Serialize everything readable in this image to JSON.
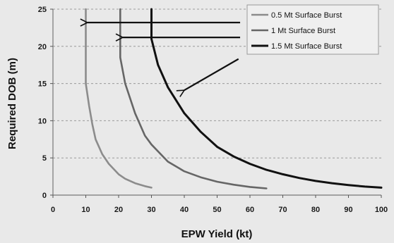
{
  "chart_data": {
    "type": "line",
    "xlabel": "EPW Yield (kt)",
    "ylabel": "Required DOB (m)",
    "xlim": [
      0,
      100
    ],
    "ylim": [
      0,
      25
    ],
    "xticks": [
      0,
      10,
      20,
      30,
      40,
      50,
      60,
      70,
      80,
      90,
      100
    ],
    "yticks": [
      0,
      5,
      10,
      15,
      20,
      25
    ],
    "grid": "horizontal dashed",
    "legend_position": "top-right",
    "series": [
      {
        "name": "0.5 Mt Surface Burst",
        "color": "#8c8c8c",
        "x": [
          10,
          10,
          11,
          12,
          13,
          15,
          17,
          20,
          22,
          25,
          28,
          30
        ],
        "y": [
          25,
          15,
          12,
          9.5,
          7.5,
          5.5,
          4.2,
          2.8,
          2.2,
          1.6,
          1.2,
          1.0
        ]
      },
      {
        "name": "1 Mt Surface Burst",
        "color": "#666666",
        "x": [
          20.5,
          20.5,
          22,
          25,
          28,
          30,
          35,
          40,
          45,
          50,
          55,
          60,
          65
        ],
        "y": [
          25,
          18.5,
          15,
          11,
          8,
          6.8,
          4.5,
          3.2,
          2.4,
          1.8,
          1.4,
          1.1,
          0.9
        ]
      },
      {
        "name": "1.5 Mt Surface Burst",
        "color": "#111111",
        "x": [
          30,
          30,
          32,
          35,
          40,
          45,
          50,
          55,
          60,
          65,
          70,
          75,
          80,
          85,
          90,
          95,
          100
        ],
        "y": [
          25,
          21,
          17.5,
          14.5,
          11,
          8.5,
          6.5,
          5.2,
          4.2,
          3.4,
          2.8,
          2.3,
          1.9,
          1.6,
          1.35,
          1.15,
          1.0
        ]
      }
    ],
    "annotations": [
      {
        "type": "arrow",
        "from": [
          57,
          23.2
        ],
        "to": [
          10.5,
          23.2
        ]
      },
      {
        "type": "arrow",
        "from": [
          57,
          21.2
        ],
        "to": [
          21.3,
          21.2
        ]
      },
      {
        "type": "arrow",
        "from": [
          56.5,
          18.3
        ],
        "to": [
          40,
          14.1
        ]
      }
    ]
  }
}
